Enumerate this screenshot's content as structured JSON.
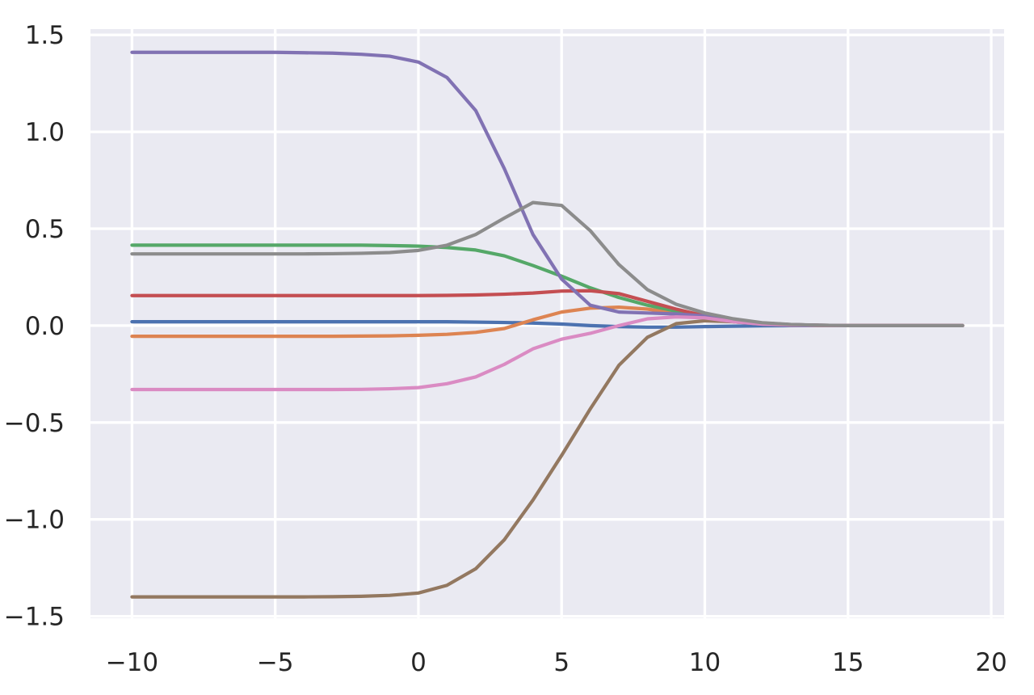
{
  "chart_data": {
    "type": "line",
    "title": "",
    "xlabel": "",
    "ylabel": "",
    "xlim": [
      -11.45,
      20.45
    ],
    "ylim": [
      -1.51,
      1.53
    ],
    "x_ticks": [
      -10,
      -5,
      0,
      5,
      10,
      15,
      20
    ],
    "y_ticks": [
      -1.5,
      -1.0,
      -0.5,
      0.0,
      0.5,
      1.0,
      1.5
    ],
    "x_tick_labels": [
      "−10",
      "−5",
      "0",
      "5",
      "10",
      "15",
      "20"
    ],
    "y_tick_labels": [
      "−1.5",
      "−1.0",
      "−0.5",
      "0.0",
      "0.5",
      "1.0",
      "1.5"
    ],
    "grid": true,
    "background": "#eaeaf2",
    "x": [
      -10,
      -9,
      -8,
      -7,
      -6,
      -5,
      -4,
      -3,
      -2,
      -1,
      0,
      1,
      2,
      3,
      4,
      5,
      6,
      7,
      8,
      9,
      10,
      11,
      12,
      13,
      14,
      15,
      16,
      17,
      18,
      19
    ],
    "series": [
      {
        "color": "#4c72b0",
        "values": [
          0.02,
          0.02,
          0.02,
          0.02,
          0.02,
          0.02,
          0.02,
          0.02,
          0.02,
          0.02,
          0.02,
          0.02,
          0.018,
          0.016,
          0.013,
          0.008,
          0.0,
          -0.005,
          -0.008,
          -0.008,
          -0.005,
          -0.003,
          -0.001,
          0.0,
          0.0,
          0.0,
          0.0,
          0.0,
          0.0,
          0.0
        ]
      },
      {
        "color": "#dd8452",
        "values": [
          -0.055,
          -0.055,
          -0.055,
          -0.055,
          -0.055,
          -0.055,
          -0.055,
          -0.055,
          -0.054,
          -0.053,
          -0.05,
          -0.045,
          -0.035,
          -0.015,
          0.03,
          0.07,
          0.09,
          0.095,
          0.085,
          0.065,
          0.04,
          0.02,
          0.008,
          0.003,
          0.001,
          0.0,
          0.0,
          0.0,
          0.0,
          0.0
        ]
      },
      {
        "color": "#55a868",
        "values": [
          0.415,
          0.415,
          0.415,
          0.415,
          0.415,
          0.415,
          0.415,
          0.415,
          0.415,
          0.413,
          0.41,
          0.403,
          0.39,
          0.36,
          0.31,
          0.255,
          0.195,
          0.145,
          0.105,
          0.075,
          0.05,
          0.028,
          0.013,
          0.005,
          0.002,
          0.0,
          0.0,
          0.0,
          0.0,
          0.0
        ]
      },
      {
        "color": "#c44e52",
        "values": [
          0.155,
          0.155,
          0.155,
          0.155,
          0.155,
          0.155,
          0.155,
          0.155,
          0.155,
          0.155,
          0.155,
          0.156,
          0.158,
          0.162,
          0.168,
          0.178,
          0.18,
          0.165,
          0.125,
          0.085,
          0.05,
          0.028,
          0.013,
          0.005,
          0.002,
          0.0,
          0.0,
          0.0,
          0.0,
          0.0
        ]
      },
      {
        "color": "#8172b3",
        "values": [
          1.41,
          1.41,
          1.41,
          1.41,
          1.41,
          1.41,
          1.408,
          1.406,
          1.4,
          1.39,
          1.36,
          1.28,
          1.11,
          0.81,
          0.47,
          0.24,
          0.105,
          0.07,
          0.065,
          0.06,
          0.05,
          0.03,
          0.013,
          0.005,
          0.002,
          0.0,
          0.0,
          0.0,
          0.0,
          0.0
        ]
      },
      {
        "color": "#937860",
        "values": [
          -1.4,
          -1.4,
          -1.4,
          -1.4,
          -1.4,
          -1.4,
          -1.4,
          -1.399,
          -1.397,
          -1.392,
          -1.38,
          -1.34,
          -1.255,
          -1.105,
          -0.9,
          -0.67,
          -0.43,
          -0.205,
          -0.06,
          0.01,
          0.025,
          0.02,
          0.01,
          0.004,
          0.001,
          0.0,
          0.0,
          0.0,
          0.0,
          0.0
        ]
      },
      {
        "color": "#da8bc3",
        "values": [
          -0.33,
          -0.33,
          -0.33,
          -0.33,
          -0.33,
          -0.33,
          -0.33,
          -0.33,
          -0.329,
          -0.326,
          -0.32,
          -0.3,
          -0.265,
          -0.2,
          -0.12,
          -0.07,
          -0.04,
          0.0,
          0.035,
          0.045,
          0.04,
          0.02,
          0.008,
          0.003,
          0.001,
          0.0,
          0.0,
          0.0,
          0.0,
          0.0
        ]
      },
      {
        "color": "#8c8c8c",
        "values": [
          0.37,
          0.37,
          0.37,
          0.37,
          0.37,
          0.37,
          0.37,
          0.371,
          0.373,
          0.377,
          0.388,
          0.415,
          0.47,
          0.555,
          0.635,
          0.62,
          0.49,
          0.315,
          0.185,
          0.11,
          0.065,
          0.035,
          0.015,
          0.006,
          0.002,
          0.0,
          0.0,
          0.0,
          0.0,
          0.0
        ]
      }
    ]
  }
}
